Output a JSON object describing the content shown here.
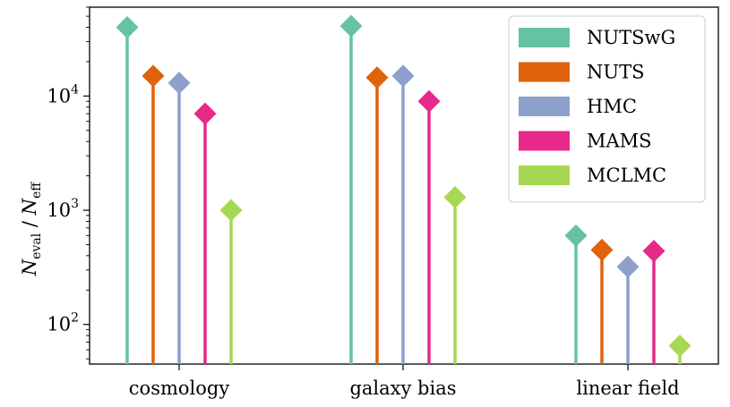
{
  "chart_data": {
    "type": "lollipop",
    "categories": [
      "cosmology",
      "galaxy bias",
      "linear field"
    ],
    "series": [
      {
        "name": "NUTSwG",
        "color": "#66c2a5",
        "values": [
          40000,
          41000,
          600
        ]
      },
      {
        "name": "NUTS",
        "color": "#e0620b",
        "values": [
          15000,
          14500,
          450
        ]
      },
      {
        "name": "HMC",
        "color": "#8da0cb",
        "values": [
          13000,
          15000,
          320
        ]
      },
      {
        "name": "MAMS",
        "color": "#e7298a",
        "values": [
          7000,
          9000,
          440
        ]
      },
      {
        "name": "MCLMC",
        "color": "#a6d854",
        "values": [
          1000,
          1300,
          65
        ]
      }
    ],
    "ylabel": {
      "main": "N",
      "sub1": "eval",
      "sep": " / ",
      "main2": "N",
      "sub2": "eff"
    },
    "yscale": "log",
    "ylim": [
      45,
      60000
    ],
    "yticks": [
      {
        "value": 100,
        "base": "10",
        "exp": "2"
      },
      {
        "value": 1000,
        "base": "10",
        "exp": "3"
      },
      {
        "value": 10000,
        "base": "10",
        "exp": "4"
      }
    ],
    "legend": "top-right",
    "grid": false
  }
}
